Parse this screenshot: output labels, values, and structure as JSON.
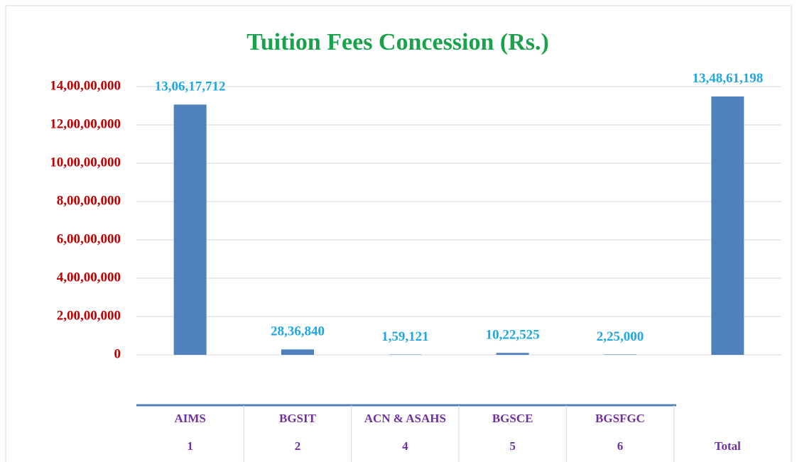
{
  "chart_data": {
    "type": "bar",
    "title": "Tuition Fees Concession (Rs.)",
    "categories": [
      "AIMS",
      "BGSIT",
      "ACN & ASAHS",
      "BGSCE",
      "BGSFGC",
      "Total"
    ],
    "category_codes": [
      "1",
      "2",
      "4",
      "5",
      "6",
      null
    ],
    "values": [
      130617712,
      2836840,
      159121,
      1022525,
      225000,
      134861198
    ],
    "value_labels": [
      "13,06,17,712",
      "28,36,840",
      "1,59,121",
      "10,22,525",
      "2,25,000",
      "13,48,61,198"
    ],
    "color": "#4f81bd",
    "ylim": [
      0,
      140000000
    ],
    "yticks": [
      {
        "value": 0,
        "label": "0"
      },
      {
        "value": 20000000,
        "label": "2,00,00,000"
      },
      {
        "value": 40000000,
        "label": "4,00,00,000"
      },
      {
        "value": 60000000,
        "label": "6,00,00,000"
      },
      {
        "value": 80000000,
        "label": "8,00,00,000"
      },
      {
        "value": 100000000,
        "label": "10,00,00,000"
      },
      {
        "value": 120000000,
        "label": "12,00,00,000"
      },
      {
        "value": 140000000,
        "label": "14,00,00,000"
      }
    ],
    "grid": true
  }
}
